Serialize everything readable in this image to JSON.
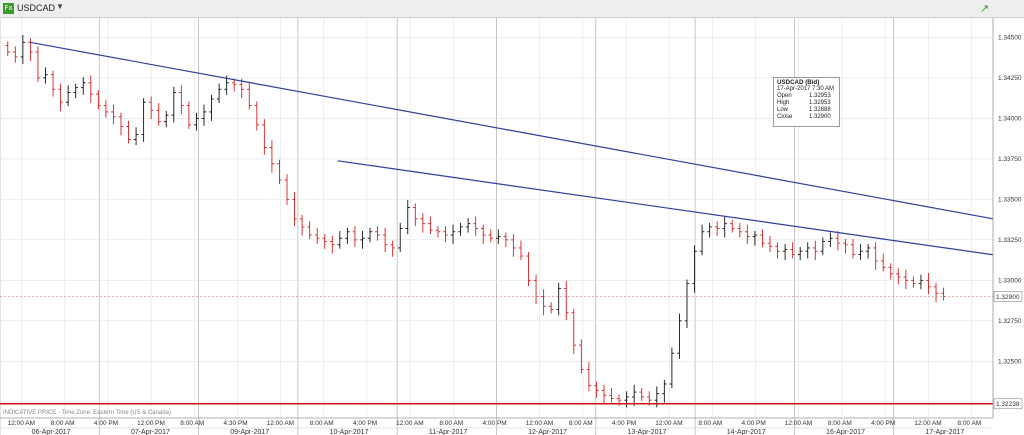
{
  "toolbar": {
    "symbol": "USDCAD",
    "dropdown_glyph": "▼",
    "symbol_icon": "chart-icon",
    "trend_icon": "trend-up-icon"
  },
  "chart_data": {
    "type": "candlestick",
    "title": "",
    "y_ticks": [
      "1.34500",
      "1.34250",
      "1.34000",
      "1.33750",
      "1.33500",
      "1.33250",
      "1.33000",
      "1.32750",
      "1.32500"
    ],
    "y_tick_values": [
      1.345,
      1.3425,
      1.34,
      1.3375,
      1.335,
      1.3325,
      1.33,
      1.3275,
      1.325
    ],
    "ylim": [
      1.3215,
      1.3462
    ],
    "last_price_label": "1.32900",
    "last_price": 1.329,
    "support_label": "1.32238",
    "support_price": 1.32238,
    "time_ticks": [
      "12:00 AM",
      "8:00 AM",
      "4:00 PM",
      "12:00 PM",
      "8:00 AM",
      "4:30 PM",
      "12:00 AM",
      "8:00 AM",
      "4:00 PM",
      "12:00 AM",
      "8:00 AM",
      "4:00 PM",
      "12:00 AM",
      "8:00 AM",
      "4:00 PM",
      "12:00 AM",
      "8:00 AM",
      "4:00 PM",
      "12:00 AM",
      "8:00 AM",
      "4:00 PM",
      "12:00 AM",
      "8:00 AM"
    ],
    "date_labels": [
      "06-Apr-2017",
      "07-Apr-2017",
      "09-Apr-2017",
      "10-Apr-2017",
      "11-Apr-2017",
      "12-Apr-2017",
      "13-Apr-2017",
      "14-Apr-2017",
      "16-Apr-2017",
      "17-Apr-2017"
    ],
    "footnote": "INDICATIVE PRICE - Time Zone: Eastern Time (US & Canada)",
    "trendlines": [
      {
        "from": [
          0,
          1.3447
        ],
        "to": [
          1,
          1.3338
        ],
        "color": "#2e3f9e"
      },
      {
        "from": [
          0.31,
          1.33738
        ],
        "to": [
          1,
          1.33158
        ],
        "color": "#2e3f9e"
      }
    ],
    "tooltip": {
      "title": "USDCAD (Bid)",
      "date": "17-Apr-2017 7:30 AM",
      "rows": [
        {
          "label": "Open",
          "value": "1.32953"
        },
        {
          "label": "High",
          "value": "1.32953"
        },
        {
          "label": "Low",
          "value": "1.32888"
        },
        {
          "label": "Close",
          "value": "1.32900"
        }
      ]
    },
    "colors": {
      "up": "#111111",
      "down": "#d42020",
      "trend": "#2e3f9e",
      "support": "#cc1111",
      "grid": "#e2e2e2"
    },
    "close_path": [
      1.3441,
      1.3438,
      1.3447,
      1.3441,
      1.3425,
      1.3427,
      1.3418,
      1.341,
      1.3416,
      1.3419,
      1.3422,
      1.3415,
      1.3408,
      1.3404,
      1.3401,
      1.3395,
      1.3387,
      1.339,
      1.341,
      1.3405,
      1.3398,
      1.3402,
      1.3416,
      1.3408,
      1.3396,
      1.34,
      1.3404,
      1.3412,
      1.3418,
      1.3422,
      1.3421,
      1.3418,
      1.3408,
      1.3396,
      1.3382,
      1.3372,
      1.3362,
      1.335,
      1.3338,
      1.3333,
      1.3328,
      1.3326,
      1.3324,
      1.3322,
      1.3326,
      1.333,
      1.3325,
      1.3326,
      1.333,
      1.3328,
      1.3322,
      1.332,
      1.3332,
      1.3345,
      1.3338,
      1.3335,
      1.3331,
      1.333,
      1.3328,
      1.333,
      1.3333,
      1.3335,
      1.3332,
      1.3328,
      1.3326,
      1.3327,
      1.3325,
      1.332,
      1.3315,
      1.33,
      1.329,
      1.3284,
      1.3282,
      1.3295,
      1.328,
      1.326,
      1.3245,
      1.3235,
      1.3232,
      1.3229,
      1.3227,
      1.3226,
      1.3228,
      1.3231,
      1.3228,
      1.3226,
      1.323,
      1.3236,
      1.3255,
      1.3275,
      1.3298,
      1.3318,
      1.333,
      1.3333,
      1.3332,
      1.3335,
      1.3332,
      1.333,
      1.3327,
      1.3328,
      1.3323,
      1.3321,
      1.3318,
      1.3319,
      1.3316,
      1.3318,
      1.332,
      1.3318,
      1.3324,
      1.3326,
      1.3323,
      1.3322,
      1.3316,
      1.3318,
      1.332,
      1.3312,
      1.3308,
      1.3304,
      1.3302,
      1.33,
      1.3298,
      1.33,
      1.3296,
      1.3292,
      1.329
    ]
  }
}
